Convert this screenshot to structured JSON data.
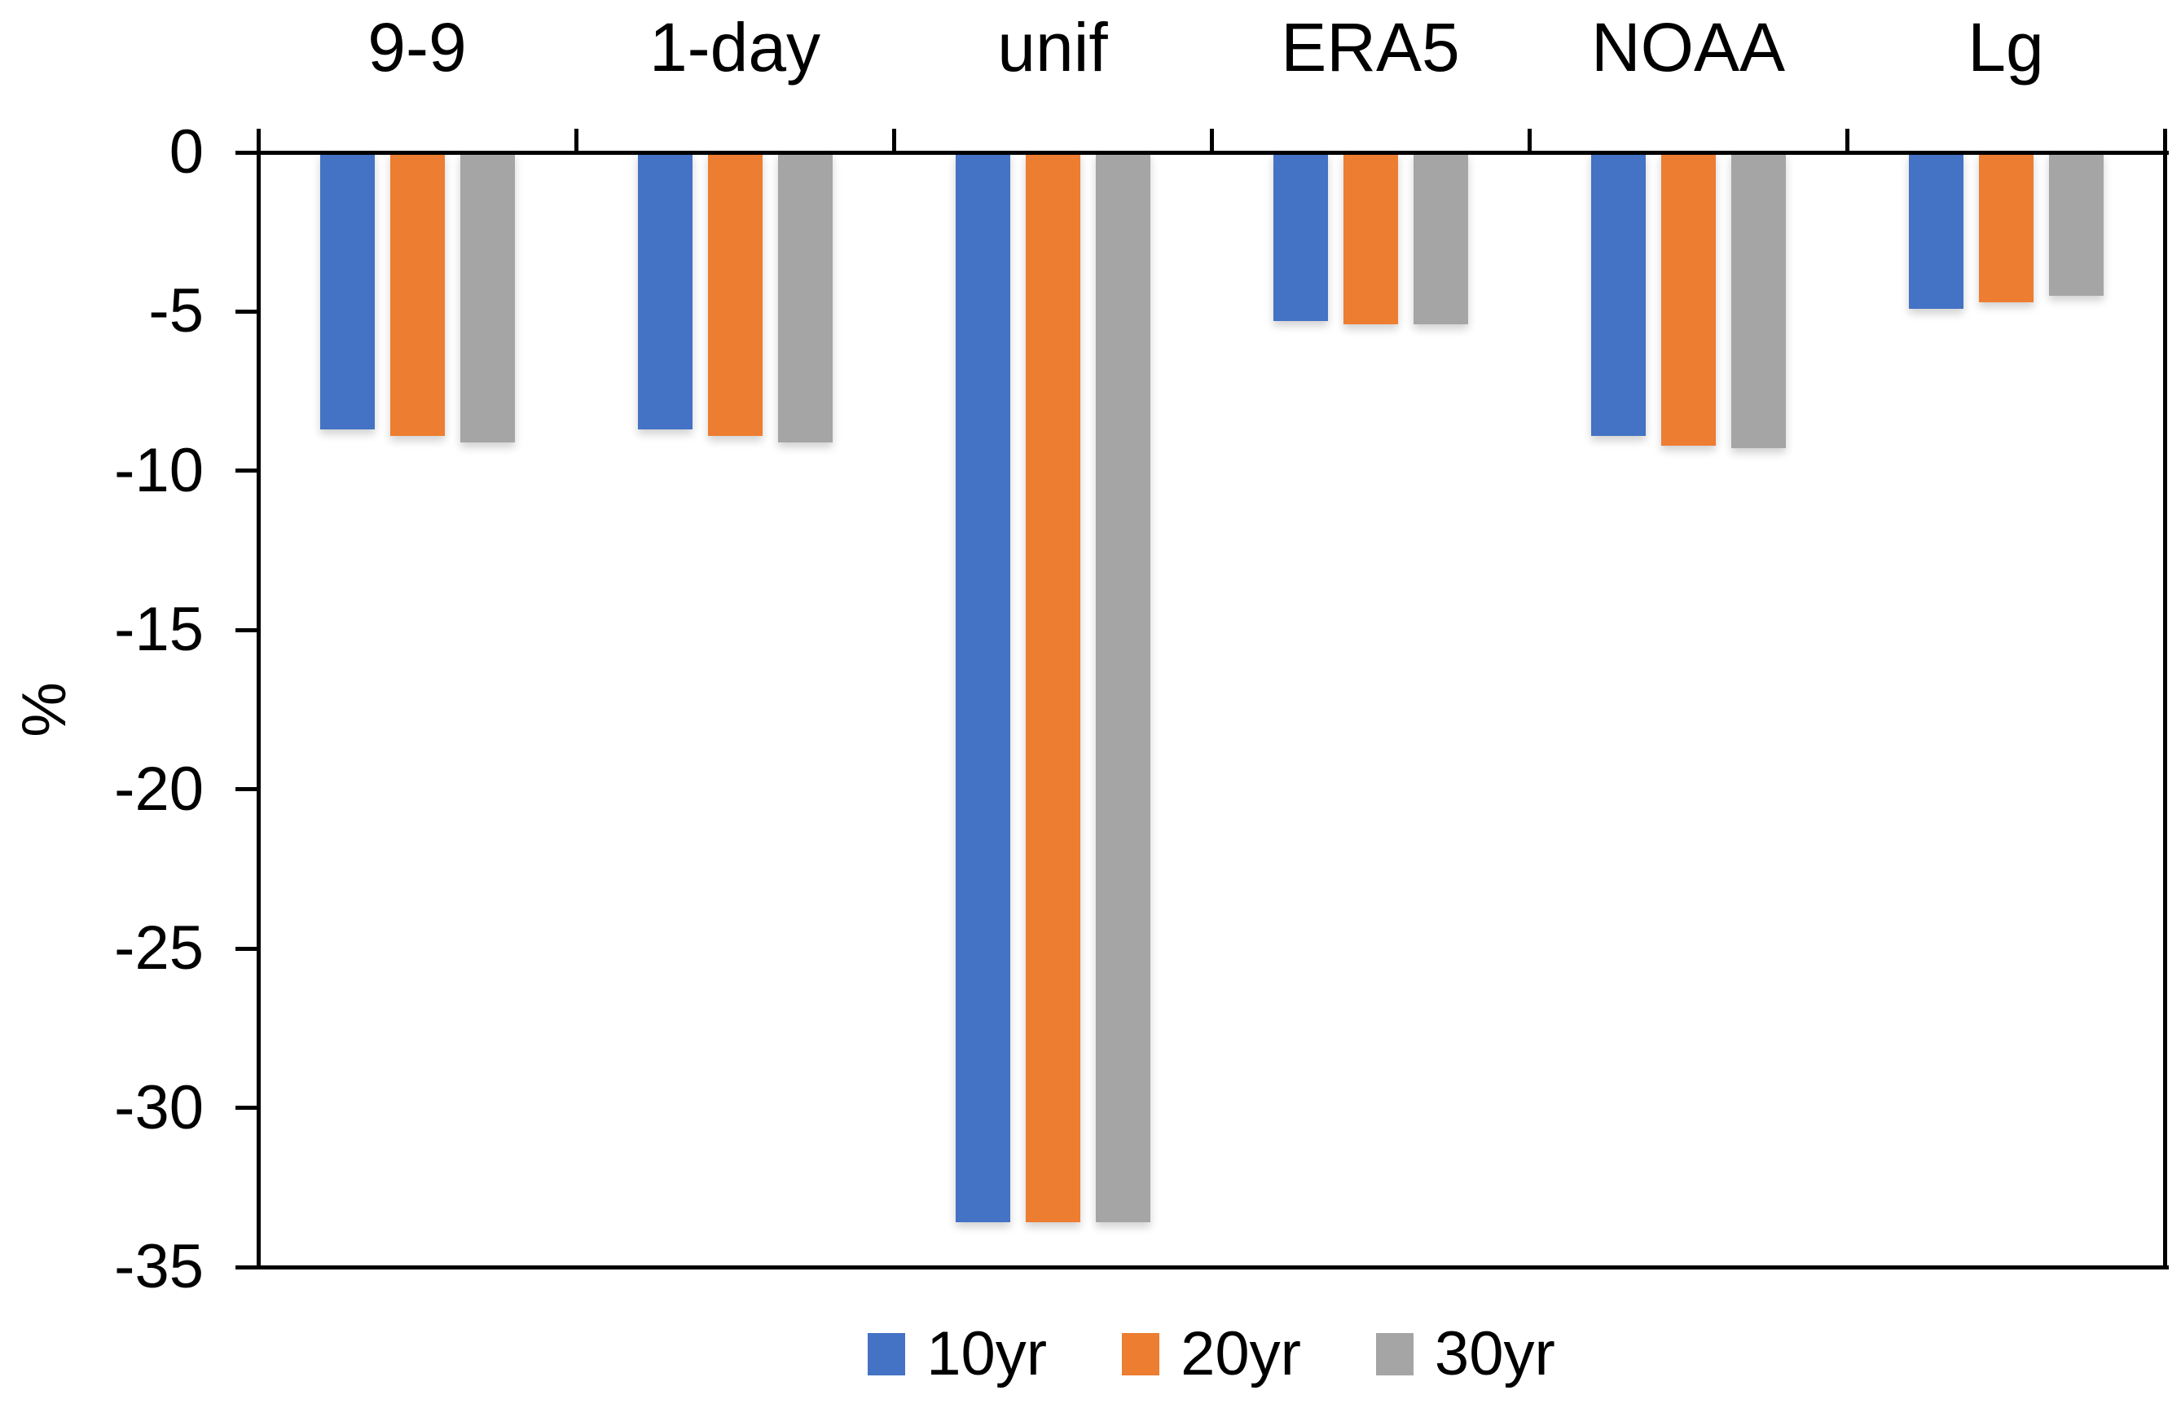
{
  "chart_data": {
    "type": "bar",
    "title": "",
    "categories": [
      "9-9",
      "1-day",
      "unif",
      "ERA5",
      "NOAA",
      "Lg"
    ],
    "series": [
      {
        "name": "10yr",
        "color": "#4472C4",
        "values": [
          -8.7,
          -8.7,
          -33.6,
          -5.3,
          -8.9,
          -4.9
        ]
      },
      {
        "name": "20yr",
        "color": "#ED7D31",
        "values": [
          -8.9,
          -8.9,
          -33.6,
          -5.4,
          -9.2,
          -4.7
        ]
      },
      {
        "name": "30yr",
        "color": "#A5A5A5",
        "values": [
          -9.1,
          -9.1,
          -33.6,
          -5.4,
          -9.3,
          -4.5
        ]
      }
    ],
    "xlabel": "",
    "ylabel": "%",
    "ylim": [
      -35,
      0
    ],
    "yticks": [
      0,
      -5,
      -10,
      -15,
      -20,
      -25,
      -30,
      -35
    ],
    "ytick_labels": [
      "0",
      "-5",
      "-10",
      "-15",
      "-20",
      "-25",
      "-30",
      "-35"
    ],
    "legend": [
      "10yr",
      "20yr",
      "30yr"
    ],
    "legend_position": "bottom",
    "grid": false,
    "axis_color": "#000000",
    "background": "#FFFFFF"
  }
}
